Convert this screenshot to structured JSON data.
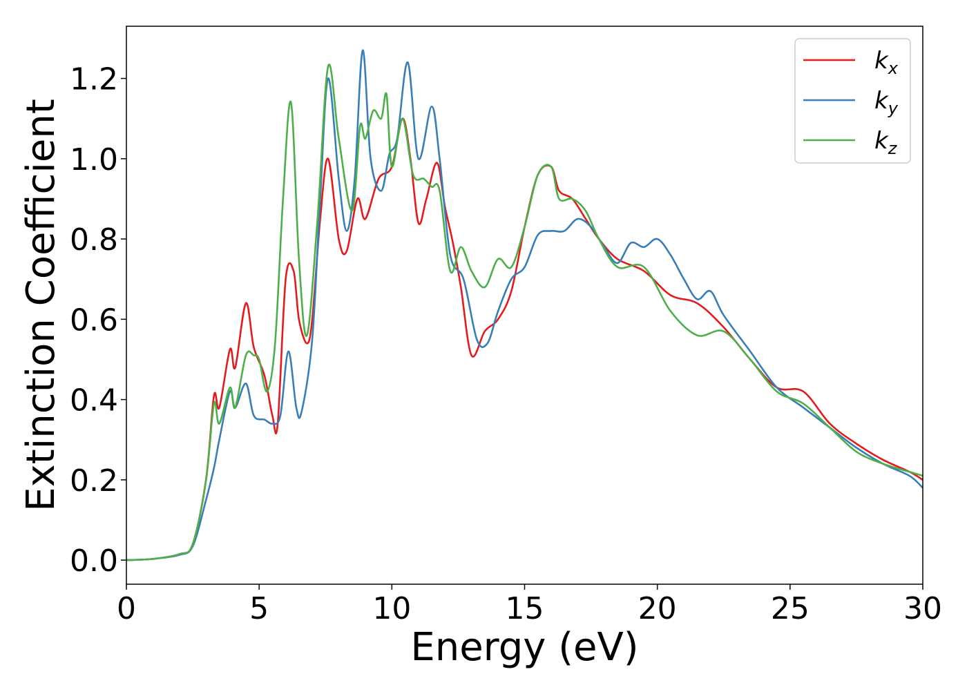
{
  "chart_data": {
    "type": "line",
    "title": "",
    "xlabel": "Energy (eV)",
    "ylabel": "Extinction Coefficient",
    "xlim": [
      0,
      30
    ],
    "ylim": [
      -0.06,
      1.33
    ],
    "xticks": [
      0,
      5,
      10,
      15,
      20,
      25,
      30
    ],
    "xtick_labels": [
      "0",
      "5",
      "10",
      "15",
      "20",
      "25",
      "30"
    ],
    "yticks": [
      0.0,
      0.2,
      0.4,
      0.6,
      0.8,
      1.0,
      1.2
    ],
    "ytick_labels": [
      "0.0",
      "0.2",
      "0.4",
      "0.6",
      "0.8",
      "1.0",
      "1.2"
    ],
    "grid": false,
    "legend_position": "top-right",
    "series": [
      {
        "name": "k_x",
        "legend_base": "k",
        "legend_sub": "x",
        "color": "#e41a1c",
        "points": [
          [
            0,
            0.0
          ],
          [
            1,
            0.003
          ],
          [
            2,
            0.015
          ],
          [
            2.5,
            0.04
          ],
          [
            3.0,
            0.2
          ],
          [
            3.3,
            0.41
          ],
          [
            3.5,
            0.38
          ],
          [
            3.9,
            0.525
          ],
          [
            4.1,
            0.48
          ],
          [
            4.5,
            0.64
          ],
          [
            4.8,
            0.53
          ],
          [
            5.2,
            0.46
          ],
          [
            5.5,
            0.36
          ],
          [
            5.7,
            0.34
          ],
          [
            6.0,
            0.7
          ],
          [
            6.3,
            0.72
          ],
          [
            6.5,
            0.6
          ],
          [
            6.8,
            0.54
          ],
          [
            7.0,
            0.6
          ],
          [
            7.3,
            0.85
          ],
          [
            7.6,
            1.0
          ],
          [
            8.0,
            0.8
          ],
          [
            8.3,
            0.77
          ],
          [
            8.7,
            0.9
          ],
          [
            9.0,
            0.85
          ],
          [
            9.5,
            0.95
          ],
          [
            10.0,
            0.98
          ],
          [
            10.4,
            1.1
          ],
          [
            10.7,
            1.0
          ],
          [
            11.0,
            0.84
          ],
          [
            11.3,
            0.9
          ],
          [
            11.7,
            0.99
          ],
          [
            12.0,
            0.88
          ],
          [
            12.3,
            0.79
          ],
          [
            12.6,
            0.68
          ],
          [
            13.0,
            0.51
          ],
          [
            13.5,
            0.57
          ],
          [
            14.0,
            0.6
          ],
          [
            14.5,
            0.67
          ],
          [
            15.0,
            0.83
          ],
          [
            15.5,
            0.96
          ],
          [
            16.0,
            0.98
          ],
          [
            16.3,
            0.92
          ],
          [
            16.8,
            0.9
          ],
          [
            17.3,
            0.85
          ],
          [
            17.8,
            0.8
          ],
          [
            18.5,
            0.75
          ],
          [
            19.5,
            0.72
          ],
          [
            20.5,
            0.66
          ],
          [
            21.5,
            0.64
          ],
          [
            22.5,
            0.58
          ],
          [
            23.5,
            0.5
          ],
          [
            24.5,
            0.43
          ],
          [
            25.5,
            0.42
          ],
          [
            26.5,
            0.34
          ],
          [
            27.5,
            0.29
          ],
          [
            28.5,
            0.25
          ],
          [
            29.5,
            0.22
          ],
          [
            30,
            0.2
          ]
        ]
      },
      {
        "name": "k_y",
        "legend_base": "k",
        "legend_sub": "y",
        "color": "#377eb8",
        "points": [
          [
            0,
            0.0
          ],
          [
            1,
            0.003
          ],
          [
            2,
            0.013
          ],
          [
            2.5,
            0.035
          ],
          [
            3.0,
            0.15
          ],
          [
            3.3,
            0.23
          ],
          [
            3.5,
            0.3
          ],
          [
            3.9,
            0.42
          ],
          [
            4.1,
            0.38
          ],
          [
            4.5,
            0.44
          ],
          [
            4.8,
            0.36
          ],
          [
            5.2,
            0.35
          ],
          [
            5.5,
            0.34
          ],
          [
            5.8,
            0.36
          ],
          [
            6.1,
            0.52
          ],
          [
            6.4,
            0.38
          ],
          [
            6.6,
            0.37
          ],
          [
            7.0,
            0.55
          ],
          [
            7.3,
            0.9
          ],
          [
            7.6,
            1.2
          ],
          [
            8.0,
            0.95
          ],
          [
            8.3,
            0.82
          ],
          [
            8.6,
            0.95
          ],
          [
            8.9,
            1.27
          ],
          [
            9.2,
            1.0
          ],
          [
            9.6,
            0.92
          ],
          [
            9.9,
            1.01
          ],
          [
            10.2,
            1.05
          ],
          [
            10.6,
            1.24
          ],
          [
            11.0,
            1.0
          ],
          [
            11.5,
            1.13
          ],
          [
            11.8,
            1.0
          ],
          [
            12.2,
            0.76
          ],
          [
            12.7,
            0.7
          ],
          [
            13.2,
            0.55
          ],
          [
            13.6,
            0.54
          ],
          [
            14.0,
            0.62
          ],
          [
            14.5,
            0.7
          ],
          [
            15.0,
            0.73
          ],
          [
            15.5,
            0.81
          ],
          [
            16.0,
            0.82
          ],
          [
            16.5,
            0.82
          ],
          [
            17.0,
            0.85
          ],
          [
            17.5,
            0.83
          ],
          [
            18.0,
            0.78
          ],
          [
            18.5,
            0.74
          ],
          [
            19.0,
            0.79
          ],
          [
            19.5,
            0.78
          ],
          [
            20.0,
            0.8
          ],
          [
            20.5,
            0.76
          ],
          [
            21.0,
            0.7
          ],
          [
            21.5,
            0.65
          ],
          [
            22.0,
            0.67
          ],
          [
            22.5,
            0.61
          ],
          [
            23.5,
            0.52
          ],
          [
            24.5,
            0.43
          ],
          [
            25.5,
            0.38
          ],
          [
            26.5,
            0.33
          ],
          [
            27.5,
            0.28
          ],
          [
            28.5,
            0.24
          ],
          [
            29.5,
            0.21
          ],
          [
            30,
            0.18
          ]
        ]
      },
      {
        "name": "k_z",
        "legend_base": "k",
        "legend_sub": "z",
        "color": "#4daf4a",
        "points": [
          [
            0,
            0.0
          ],
          [
            1,
            0.003
          ],
          [
            2,
            0.015
          ],
          [
            2.5,
            0.04
          ],
          [
            3.0,
            0.2
          ],
          [
            3.3,
            0.39
          ],
          [
            3.5,
            0.34
          ],
          [
            3.9,
            0.43
          ],
          [
            4.1,
            0.38
          ],
          [
            4.5,
            0.51
          ],
          [
            4.8,
            0.51
          ],
          [
            5.0,
            0.5
          ],
          [
            5.3,
            0.42
          ],
          [
            5.6,
            0.54
          ],
          [
            5.9,
            0.9
          ],
          [
            6.2,
            1.14
          ],
          [
            6.5,
            0.75
          ],
          [
            6.8,
            0.56
          ],
          [
            7.2,
            0.85
          ],
          [
            7.6,
            1.23
          ],
          [
            8.0,
            1.05
          ],
          [
            8.5,
            0.87
          ],
          [
            8.8,
            1.08
          ],
          [
            9.0,
            1.05
          ],
          [
            9.3,
            1.12
          ],
          [
            9.6,
            1.1
          ],
          [
            9.8,
            1.16
          ],
          [
            10.0,
            0.98
          ],
          [
            10.4,
            1.1
          ],
          [
            10.8,
            0.96
          ],
          [
            11.2,
            0.95
          ],
          [
            11.5,
            0.93
          ],
          [
            11.8,
            0.92
          ],
          [
            12.2,
            0.72
          ],
          [
            12.6,
            0.78
          ],
          [
            13.0,
            0.72
          ],
          [
            13.5,
            0.68
          ],
          [
            14.0,
            0.75
          ],
          [
            14.5,
            0.73
          ],
          [
            15.0,
            0.83
          ],
          [
            15.5,
            0.96
          ],
          [
            16.0,
            0.98
          ],
          [
            16.3,
            0.9
          ],
          [
            16.8,
            0.9
          ],
          [
            17.3,
            0.87
          ],
          [
            17.8,
            0.8
          ],
          [
            18.5,
            0.73
          ],
          [
            19.5,
            0.73
          ],
          [
            20.5,
            0.62
          ],
          [
            21.5,
            0.56
          ],
          [
            22.5,
            0.57
          ],
          [
            23.5,
            0.5
          ],
          [
            24.5,
            0.42
          ],
          [
            25.5,
            0.39
          ],
          [
            26.5,
            0.33
          ],
          [
            27.5,
            0.27
          ],
          [
            28.5,
            0.24
          ],
          [
            29.5,
            0.22
          ],
          [
            30,
            0.21
          ]
        ]
      }
    ]
  }
}
